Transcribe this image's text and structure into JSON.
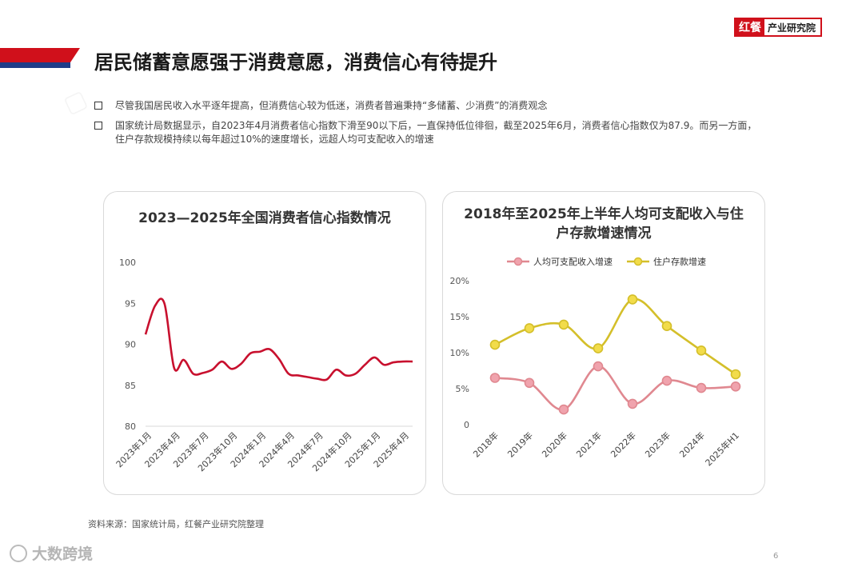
{
  "header": {
    "logo_mark": "红餐",
    "logo_text": "产业研究院",
    "title": "居民储蓄意愿强于消费意愿，消费信心有待提升"
  },
  "bullets": [
    "尽管我国居民收入水平逐年提高，但消费信心较为低迷，消费者普遍秉持“多储蓄、少消费”的消费观念",
    "国家统计局数据显示，自2023年4月消费者信心指数下滑至90以下后，一直保持低位徘徊，截至2025年6月，消费者信心指数仅为87.9。而另一方面，住户存款规模持续以每年超过10%的速度增长，远超人均可支配收入的增速"
  ],
  "source": "资料来源：国家统计局，红餐产业研究院整理",
  "page_number": "6",
  "corner_watermark": "大数跨境",
  "colors": {
    "brand_red": "#d0101b",
    "brand_blue": "#1f3c88",
    "line_red": "#c8102e",
    "income_line": "#e08890",
    "income_marker": "#f0a3ad",
    "deposit_line": "#d4bf2a",
    "deposit_marker": "#f2dc4a"
  },
  "chart_data": [
    {
      "type": "line",
      "title": "2023—2025年全国消费者信心指数情况",
      "xlabel": "",
      "ylabel": "",
      "ylim": [
        80,
        100
      ],
      "yticks": [
        80,
        85,
        90,
        95,
        100
      ],
      "x_tick_labels": [
        "2023年1月",
        "2023年4月",
        "2023年7月",
        "2023年10月",
        "2024年1月",
        "2024年4月",
        "2024年7月",
        "2024年10月",
        "2025年1月",
        "2025年4月"
      ],
      "series": [
        {
          "values": [
            91.2,
            94.7,
            94.9,
            87.1,
            88.1,
            86.4,
            86.5,
            86.9,
            87.9,
            87.0,
            87.6,
            88.9,
            89.1,
            89.4,
            88.2,
            86.4,
            86.2,
            86.0,
            85.8,
            85.7,
            86.9,
            86.2,
            86.4,
            87.5,
            88.4,
            87.5,
            87.8,
            87.9,
            87.9
          ]
        }
      ],
      "grid": false,
      "legend": "none"
    },
    {
      "type": "line",
      "title": "2018年至2025年上半年人均可支配收入与住户存款增速情况",
      "categories": [
        "2018年",
        "2019年",
        "2020年",
        "2021年",
        "2022年",
        "2023年",
        "2024年",
        "2025年H1"
      ],
      "ylim": [
        0,
        20
      ],
      "yticks": [
        0,
        5,
        10,
        15,
        20
      ],
      "ytick_labels": [
        "0",
        "5%",
        "10%",
        "15%",
        "20%"
      ],
      "series": [
        {
          "name": "人均可支配收入增速",
          "values": [
            6.5,
            5.8,
            2.1,
            8.1,
            2.9,
            6.1,
            5.1,
            5.3
          ]
        },
        {
          "name": "住户存款增速",
          "values": [
            11.1,
            13.4,
            13.9,
            10.6,
            17.4,
            13.7,
            10.3,
            7.0
          ]
        }
      ],
      "grid": false,
      "legend": "top"
    }
  ]
}
